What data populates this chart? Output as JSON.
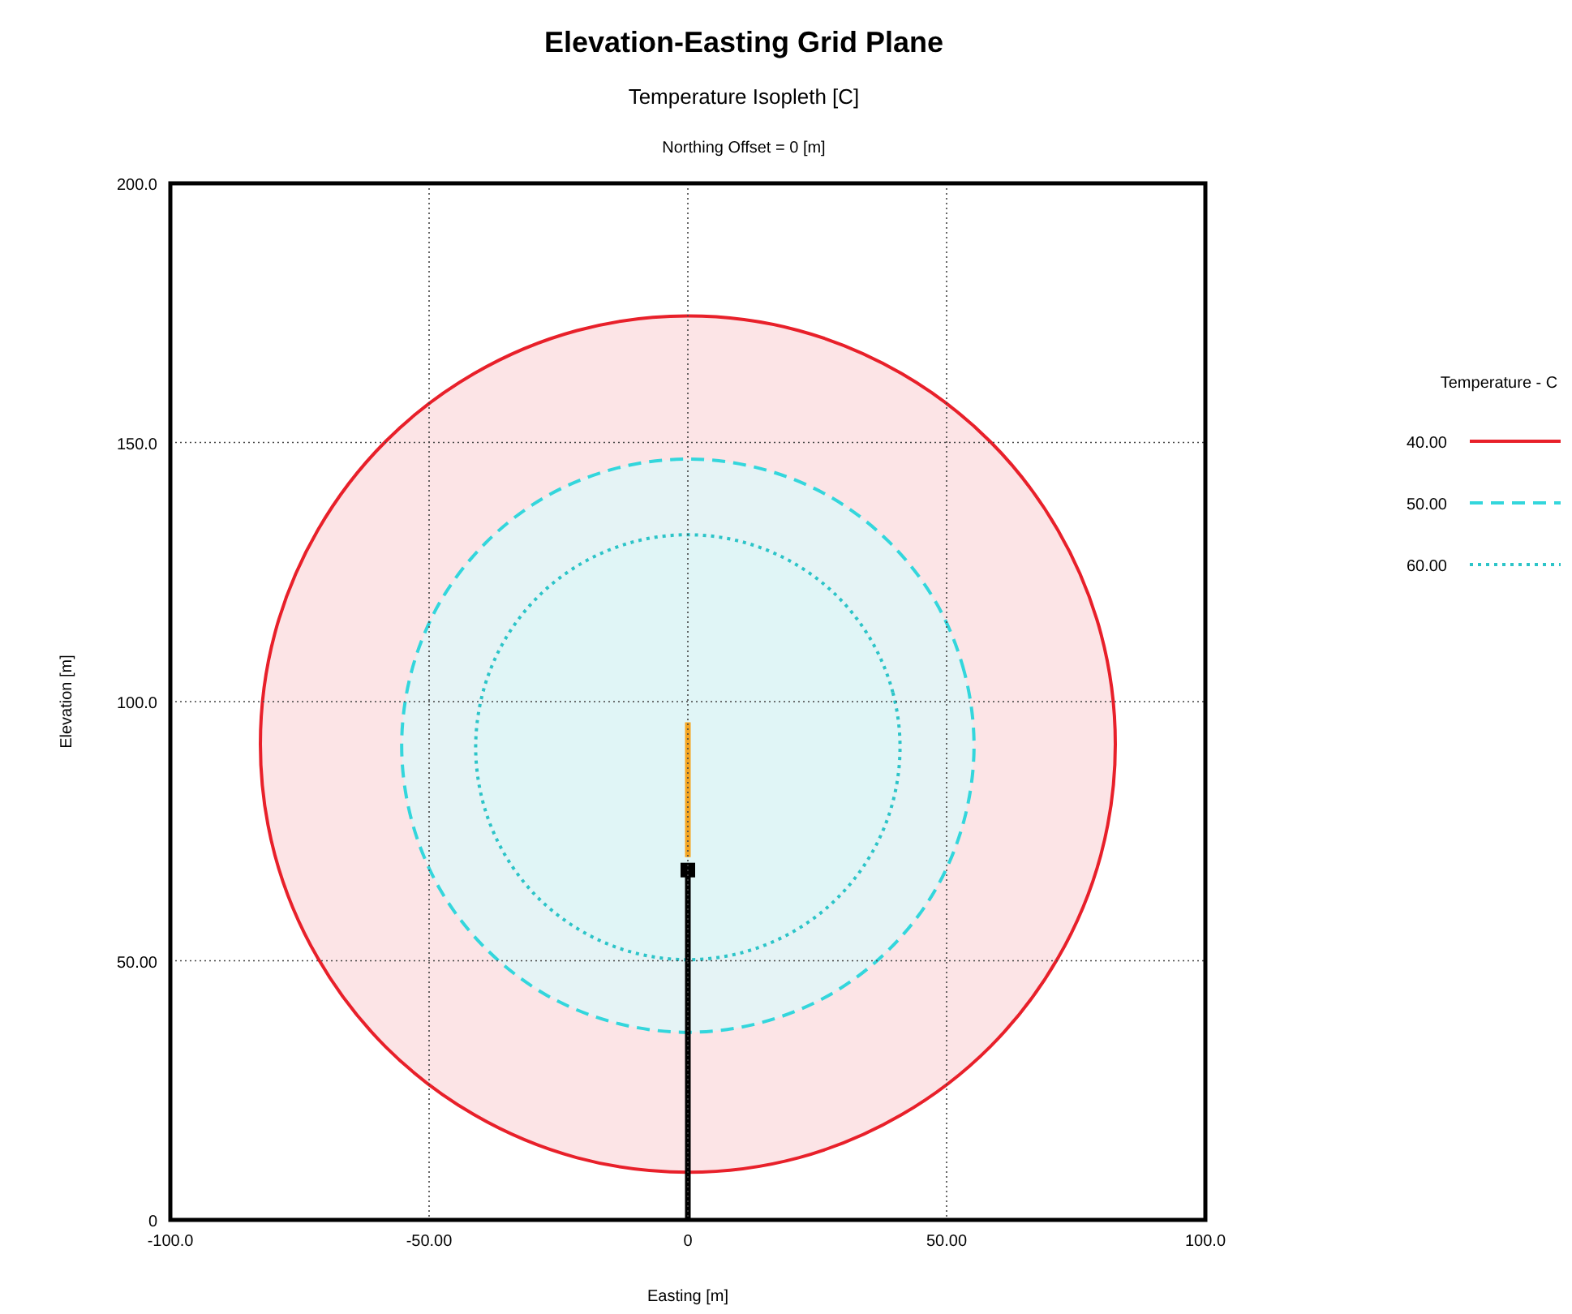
{
  "chart_data": {
    "type": "area",
    "title": "Elevation-Easting Grid Plane",
    "subtitle": "Temperature Isopleth [C]",
    "annotations": [
      "Northing Offset = 0 [m]"
    ],
    "xlabel": "Easting [m]",
    "ylabel": "Elevation [m]",
    "legend_title": "Temperature - C",
    "legend": "right",
    "grid": true,
    "xlim": [
      -100,
      100
    ],
    "ylim": [
      0,
      200
    ],
    "xticks": [
      {
        "value": -100,
        "label": "-100.0"
      },
      {
        "value": -50,
        "label": "-50.00"
      },
      0,
      {
        "value": 50,
        "label": "50.00"
      },
      {
        "value": 100,
        "label": "100.0"
      }
    ],
    "yticks": [
      0,
      {
        "value": 50,
        "label": "50.00"
      },
      {
        "value": 100,
        "label": "100.0"
      },
      {
        "value": 150,
        "label": "150.0"
      },
      {
        "value": 200,
        "label": "200.0"
      }
    ],
    "series": [
      {
        "name": "40.00",
        "color": "#e8202a",
        "line_style": "solid",
        "x": [
          82.6,
          79.8,
          71.5,
          58.4,
          41.3,
          21.4,
          0,
          -21.4,
          -41.3,
          -58.4,
          -71.5,
          -79.8,
          -82.6,
          -79.8,
          -71.5,
          -58.4,
          -41.3,
          -21.4,
          0,
          21.4,
          41.3,
          58.4,
          71.5,
          79.8,
          82.6
        ],
        "values": [
          91.8,
          113.2,
          133.1,
          150.2,
          163.3,
          171.6,
          174.4,
          171.6,
          163.3,
          150.2,
          133.1,
          113.2,
          91.8,
          70.4,
          50.5,
          33.4,
          20.3,
          12.0,
          9.2,
          12.0,
          20.3,
          33.4,
          50.5,
          70.4,
          91.8
        ]
      },
      {
        "name": "50.00",
        "color": "#33d6dc",
        "line_style": "dashed",
        "x": [
          55.3,
          53.4,
          47.9,
          39.1,
          27.7,
          14.3,
          0,
          -14.3,
          -27.7,
          -39.1,
          -47.9,
          -53.4,
          -55.3,
          -53.4,
          -47.9,
          -39.1,
          -27.7,
          -14.3,
          0,
          14.3,
          27.7,
          39.1,
          47.9,
          53.4,
          55.3
        ],
        "values": [
          91.5,
          105.8,
          119.2,
          130.6,
          139.4,
          144.9,
          146.8,
          144.9,
          139.4,
          130.6,
          119.2,
          105.8,
          91.5,
          77.2,
          63.8,
          52.4,
          43.6,
          38.1,
          36.2,
          38.1,
          43.6,
          52.4,
          63.8,
          77.2,
          91.5
        ]
      },
      {
        "name": "60.00",
        "color": "#2cc4c8",
        "line_style": "dotted",
        "x": [
          41,
          39.6,
          35.5,
          29,
          20.5,
          10.6,
          0,
          -10.6,
          -20.5,
          -29,
          -35.5,
          -39.6,
          -41,
          -39.6,
          -35.5,
          -29,
          -20.5,
          -10.6,
          0,
          10.6,
          20.5,
          29,
          35.5,
          39.6,
          41
        ],
        "values": [
          91.2,
          101.8,
          111.7,
          120.2,
          126.7,
          130.8,
          132.2,
          130.8,
          126.7,
          120.2,
          111.7,
          101.8,
          91.2,
          80.6,
          70.7,
          62.2,
          55.7,
          51.6,
          50.2,
          51.6,
          55.7,
          62.2,
          70.7,
          80.6,
          91.2
        ]
      },
      {
        "type": "line",
        "color": "#000000",
        "line_style": "solid",
        "x": [
          0,
          0
        ],
        "values": [
          0,
          68
        ]
      },
      {
        "type": "line",
        "color": "#f5a623",
        "line_style": "solid",
        "x": [
          0,
          0
        ],
        "values": [
          70,
          96
        ]
      },
      {
        "type": "scatter",
        "color": "#000000",
        "marker": "square",
        "x": [
          0
        ],
        "values": [
          67.5
        ]
      }
    ]
  }
}
